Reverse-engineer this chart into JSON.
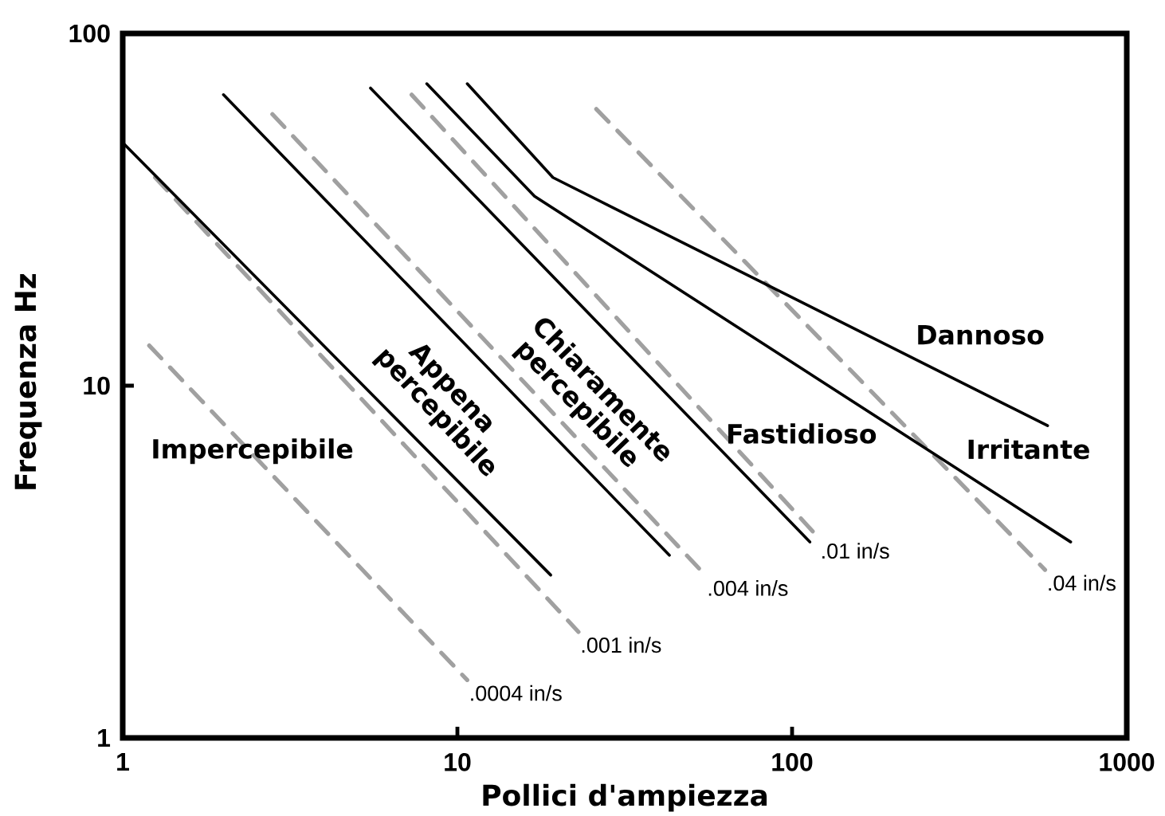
{
  "chart_data": {
    "type": "line",
    "xlabel": "Pollici d'ampiezza",
    "ylabel": "Frequenza Hz",
    "log": "xy",
    "xlim": [
      1,
      1000
    ],
    "ylim": [
      1,
      100
    ],
    "xticks": [
      1,
      10,
      100,
      1000
    ],
    "yticks": [
      1,
      10,
      100
    ],
    "marker": "none",
    "line_style": "solid",
    "series": [
      {
        "name": ".0004 in/s",
        "color": "#a0a0a0",
        "line_style": "dashed",
        "x": [
          1.2,
          10.7
        ],
        "values": [
          13,
          1.46
        ]
      },
      {
        "name": ".001 in/s",
        "color": "#a0a0a0",
        "line_style": "dashed",
        "x": [
          1.25,
          23
        ],
        "values": [
          39,
          2.0
        ]
      },
      {
        "name": ".004 in/s",
        "color": "#a0a0a0",
        "line_style": "dashed",
        "x": [
          2.8,
          55
        ],
        "values": [
          59,
          2.9
        ]
      },
      {
        "name": ".01 in/s",
        "color": "#a0a0a0",
        "line_style": "dashed",
        "x": [
          7.3,
          120
        ],
        "values": [
          67,
          3.7
        ]
      },
      {
        "name": ".04 in/s",
        "color": "#a0a0a0",
        "line_style": "dashed",
        "x": [
          26,
          570
        ],
        "values": [
          61,
          3.0
        ]
      },
      {
        "color": "#000000",
        "x": [
          1,
          19
        ],
        "values": [
          49,
          2.9
        ]
      },
      {
        "color": "#000000",
        "x": [
          2,
          43
        ],
        "values": [
          67,
          3.3
        ]
      },
      {
        "color": "#000000",
        "x": [
          5.5,
          113
        ],
        "values": [
          70,
          3.6
        ]
      },
      {
        "color": "#000000",
        "x": [
          8.1,
          17,
          680
        ],
        "values": [
          72,
          34.5,
          3.6
        ]
      },
      {
        "color": "#000000",
        "x": [
          10.7,
          19.3,
          580
        ],
        "values": [
          72,
          39,
          7.7
        ]
      }
    ],
    "annotations": [
      "Impercepibile",
      "Appena percepibile",
      "Chiaramente percepibile",
      "Fastidioso",
      "Irritante",
      "Dannoso"
    ]
  }
}
